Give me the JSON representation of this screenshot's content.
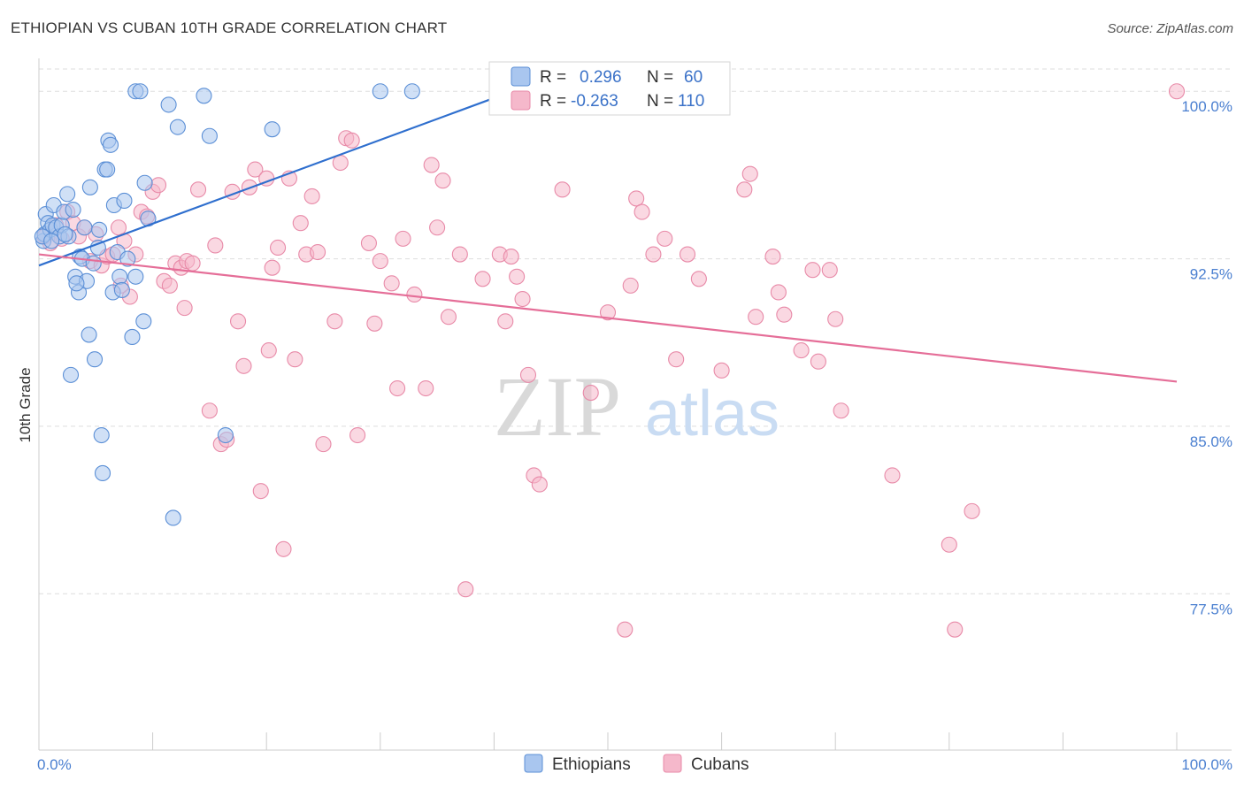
{
  "title": "ETHIOPIAN VS CUBAN 10TH GRADE CORRELATION CHART",
  "source": "Source: ZipAtlas.com",
  "watermark": {
    "zip": "ZIP",
    "atlas": "atlas"
  },
  "colors": {
    "ethiopians_fill": "#a9c6ef",
    "ethiopians_stroke": "#5b8fd6",
    "ethiopians_line": "#2f6fce",
    "cubans_fill": "#f5b8cb",
    "cubans_stroke": "#e88aa8",
    "cubans_line": "#e56e98",
    "tick_text": "#4a7fd0",
    "grid": "#dddddd"
  },
  "legend": {
    "r_label": "R =",
    "n_label": "N =",
    "rows": [
      {
        "r": "0.296",
        "n": "60"
      },
      {
        "r": "-0.263",
        "n": "110"
      }
    ]
  },
  "chart_data": {
    "type": "scatter",
    "xlabel": "",
    "ylabel": "10th Grade",
    "xlim": [
      0,
      100
    ],
    "ylim": [
      70.5,
      101.0
    ],
    "x_tick_labels": [
      "0.0%",
      "100.0%"
    ],
    "y_ticks": [
      77.5,
      85.0,
      92.5,
      100.0
    ],
    "y_tick_labels": [
      "77.5%",
      "85.0%",
      "92.5%",
      "100.0%"
    ],
    "series": [
      {
        "name": "Ethiopians",
        "trend": {
          "x": [
            0,
            40
          ],
          "y": [
            92.2,
            99.7
          ]
        },
        "points": [
          [
            0.4,
            93.3
          ],
          [
            0.5,
            93.6
          ],
          [
            0.6,
            94.5
          ],
          [
            0.8,
            94.1
          ],
          [
            1.0,
            93.8
          ],
          [
            1.2,
            94.0
          ],
          [
            1.3,
            94.9
          ],
          [
            1.5,
            93.9
          ],
          [
            1.8,
            93.5
          ],
          [
            2.0,
            94.0
          ],
          [
            2.2,
            94.6
          ],
          [
            2.5,
            95.4
          ],
          [
            2.6,
            93.5
          ],
          [
            2.8,
            87.3
          ],
          [
            3.0,
            94.7
          ],
          [
            3.2,
            91.7
          ],
          [
            3.5,
            91.0
          ],
          [
            3.6,
            92.6
          ],
          [
            3.8,
            92.5
          ],
          [
            4.0,
            93.9
          ],
          [
            4.2,
            91.5
          ],
          [
            4.4,
            89.1
          ],
          [
            4.5,
            95.7
          ],
          [
            4.8,
            92.3
          ],
          [
            4.9,
            88.0
          ],
          [
            5.2,
            93.0
          ],
          [
            5.3,
            93.8
          ],
          [
            5.5,
            84.6
          ],
          [
            5.6,
            82.9
          ],
          [
            5.8,
            96.5
          ],
          [
            6.0,
            96.5
          ],
          [
            6.1,
            97.8
          ],
          [
            6.3,
            97.6
          ],
          [
            6.5,
            91.0
          ],
          [
            6.6,
            94.9
          ],
          [
            6.9,
            92.8
          ],
          [
            7.1,
            91.7
          ],
          [
            7.3,
            91.1
          ],
          [
            7.5,
            95.1
          ],
          [
            7.8,
            92.5
          ],
          [
            8.2,
            89.0
          ],
          [
            8.5,
            91.7
          ],
          [
            8.5,
            100.0
          ],
          [
            8.9,
            100.0
          ],
          [
            9.2,
            89.7
          ],
          [
            9.3,
            95.9
          ],
          [
            9.6,
            94.3
          ],
          [
            11.4,
            99.4
          ],
          [
            12.2,
            98.4
          ],
          [
            14.5,
            99.8
          ],
          [
            15.0,
            98.0
          ],
          [
            16.4,
            84.6
          ],
          [
            20.5,
            98.3
          ],
          [
            30.0,
            100.0
          ],
          [
            32.8,
            100.0
          ],
          [
            11.8,
            80.9
          ],
          [
            0.3,
            93.5
          ],
          [
            1.1,
            93.3
          ],
          [
            2.3,
            93.6
          ],
          [
            3.3,
            91.4
          ]
        ]
      },
      {
        "name": "Cubans",
        "trend": {
          "x": [
            0,
            100
          ],
          "y": [
            92.7,
            87.0
          ]
        },
        "points": [
          [
            0.5,
            93.5
          ],
          [
            1.0,
            93.2
          ],
          [
            1.5,
            94.0
          ],
          [
            2.0,
            93.4
          ],
          [
            2.5,
            94.6
          ],
          [
            3.0,
            94.1
          ],
          [
            3.5,
            93.5
          ],
          [
            4.0,
            93.9
          ],
          [
            4.5,
            92.4
          ],
          [
            5.0,
            93.6
          ],
          [
            5.5,
            92.2
          ],
          [
            6.0,
            92.6
          ],
          [
            6.5,
            92.7
          ],
          [
            7.0,
            93.9
          ],
          [
            7.5,
            93.3
          ],
          [
            8.0,
            90.8
          ],
          [
            8.5,
            92.7
          ],
          [
            9.0,
            94.6
          ],
          [
            9.5,
            94.4
          ],
          [
            10.0,
            95.5
          ],
          [
            10.5,
            95.8
          ],
          [
            11.0,
            91.5
          ],
          [
            11.5,
            91.3
          ],
          [
            12.0,
            92.3
          ],
          [
            12.5,
            92.1
          ],
          [
            13.0,
            92.4
          ],
          [
            13.5,
            92.3
          ],
          [
            14.0,
            95.6
          ],
          [
            15.0,
            85.7
          ],
          [
            15.5,
            93.1
          ],
          [
            16.0,
            84.2
          ],
          [
            16.5,
            84.4
          ],
          [
            17.0,
            95.5
          ],
          [
            17.5,
            89.7
          ],
          [
            18.0,
            87.7
          ],
          [
            18.5,
            95.7
          ],
          [
            19.0,
            96.5
          ],
          [
            19.5,
            82.1
          ],
          [
            20.0,
            96.1
          ],
          [
            20.5,
            92.1
          ],
          [
            21.0,
            93.0
          ],
          [
            21.5,
            79.5
          ],
          [
            22.0,
            96.1
          ],
          [
            22.5,
            88.0
          ],
          [
            23.0,
            94.1
          ],
          [
            23.5,
            92.7
          ],
          [
            24.0,
            95.3
          ],
          [
            24.5,
            92.8
          ],
          [
            25.0,
            84.2
          ],
          [
            26.0,
            89.7
          ],
          [
            26.5,
            96.8
          ],
          [
            27.0,
            97.9
          ],
          [
            27.5,
            97.8
          ],
          [
            28.0,
            84.6
          ],
          [
            29.0,
            93.2
          ],
          [
            29.5,
            89.6
          ],
          [
            30.0,
            92.4
          ],
          [
            31.0,
            91.4
          ],
          [
            31.5,
            86.7
          ],
          [
            32.0,
            93.4
          ],
          [
            33.0,
            90.9
          ],
          [
            34.0,
            86.7
          ],
          [
            34.5,
            96.7
          ],
          [
            35.0,
            93.9
          ],
          [
            35.5,
            96.0
          ],
          [
            36.0,
            89.9
          ],
          [
            37.0,
            92.7
          ],
          [
            37.5,
            77.7
          ],
          [
            39.0,
            91.6
          ],
          [
            40.5,
            92.7
          ],
          [
            41.0,
            89.7
          ],
          [
            41.5,
            92.6
          ],
          [
            42.0,
            91.7
          ],
          [
            42.5,
            90.7
          ],
          [
            43.0,
            87.3
          ],
          [
            43.5,
            82.8
          ],
          [
            44.0,
            82.4
          ],
          [
            46.0,
            95.6
          ],
          [
            48.5,
            86.5
          ],
          [
            50.0,
            90.1
          ],
          [
            51.5,
            75.9
          ],
          [
            52.0,
            91.3
          ],
          [
            52.5,
            95.2
          ],
          [
            53.0,
            94.6
          ],
          [
            54.0,
            92.7
          ],
          [
            55.0,
            93.4
          ],
          [
            56.0,
            88.0
          ],
          [
            57.0,
            92.7
          ],
          [
            58.0,
            91.6
          ],
          [
            60.0,
            87.5
          ],
          [
            62.0,
            95.6
          ],
          [
            62.5,
            96.3
          ],
          [
            63.0,
            89.9
          ],
          [
            64.5,
            92.6
          ],
          [
            65.0,
            91.0
          ],
          [
            65.5,
            90.0
          ],
          [
            67.0,
            88.4
          ],
          [
            68.0,
            92.0
          ],
          [
            68.5,
            87.9
          ],
          [
            69.5,
            92.0
          ],
          [
            70.0,
            89.8
          ],
          [
            70.5,
            85.7
          ],
          [
            75.0,
            82.8
          ],
          [
            80.0,
            79.7
          ],
          [
            80.5,
            75.9
          ],
          [
            82.0,
            81.2
          ],
          [
            100.0,
            100.0
          ],
          [
            7.2,
            91.3
          ],
          [
            12.8,
            90.3
          ],
          [
            20.2,
            88.4
          ]
        ]
      }
    ]
  },
  "bottom_legend": [
    {
      "label": "Ethiopians"
    },
    {
      "label": "Cubans"
    }
  ]
}
